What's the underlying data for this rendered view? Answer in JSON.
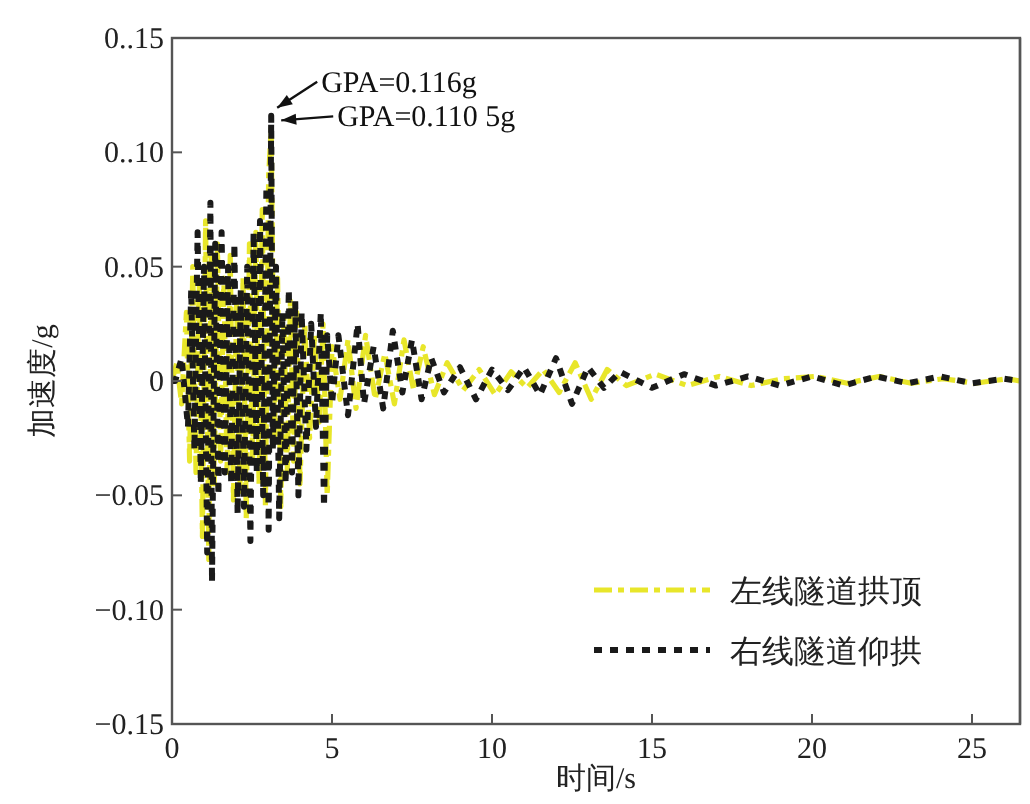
{
  "chart_data": {
    "type": "line",
    "xlabel": "时间/s",
    "ylabel": "加速度/g",
    "xlim": [
      0,
      26.5
    ],
    "xticks": [
      0,
      5,
      10,
      15,
      20,
      25
    ],
    "ylim": [
      -0.15,
      0.15
    ],
    "yticks": [
      {
        "value": -0.15,
        "label": "−0.15"
      },
      {
        "value": -0.1,
        "label": "−0.10"
      },
      {
        "value": -0.05,
        "label": "−0.05"
      },
      0,
      {
        "value": 0.05,
        "label": "0..05"
      },
      {
        "value": 0.1,
        "label": "0..10"
      },
      {
        "value": 0.15,
        "label": "0..15"
      }
    ],
    "grid": false,
    "legend": "bottom right",
    "marker": "none",
    "series": [
      {
        "name": "左线隧道拱顶",
        "color": "#e8e62a",
        "line_style": "dashed",
        "x": [
          0,
          0.15,
          0.3,
          0.45,
          0.55,
          0.65,
          0.75,
          0.85,
          0.95,
          1.05,
          1.15,
          1.22,
          1.32,
          1.42,
          1.52,
          1.62,
          1.72,
          1.82,
          1.92,
          2.02,
          2.12,
          2.22,
          2.32,
          2.42,
          2.52,
          2.62,
          2.72,
          2.82,
          2.92,
          3.02,
          3.1,
          3.2,
          3.3,
          3.4,
          3.5,
          3.6,
          3.7,
          3.8,
          3.9,
          4.0,
          4.15,
          4.3,
          4.45,
          4.6,
          4.72,
          4.85,
          5.0,
          5.25,
          5.5,
          5.75,
          6.05,
          6.35,
          6.65,
          6.95,
          7.25,
          7.55,
          7.85,
          8.2,
          8.6,
          9.1,
          9.6,
          10.1,
          10.6,
          11.1,
          11.6,
          12.1,
          12.6,
          13.1,
          13.6,
          14.2,
          15.1,
          16.1,
          17.1,
          18.1,
          19.1,
          20.1,
          21.1,
          22.1,
          23.1,
          24.1,
          25.1,
          26.1,
          26.5
        ],
        "values": [
          0,
          0.008,
          -0.01,
          0.03,
          -0.035,
          0.05,
          -0.04,
          0.045,
          -0.068,
          0.07,
          -0.078,
          0.055,
          -0.045,
          0.06,
          -0.035,
          0.045,
          -0.04,
          0.055,
          -0.052,
          0.035,
          -0.05,
          0.045,
          -0.06,
          0.06,
          -0.035,
          0.065,
          -0.045,
          0.075,
          -0.055,
          0.09,
          0.1105,
          -0.025,
          0.045,
          -0.055,
          0.028,
          -0.04,
          0.035,
          -0.035,
          0.03,
          -0.045,
          0.025,
          -0.025,
          0.02,
          -0.018,
          0.025,
          -0.05,
          0.015,
          -0.008,
          0.018,
          -0.012,
          0.02,
          -0.008,
          0.012,
          -0.01,
          0.018,
          -0.004,
          0.015,
          -0.006,
          0.008,
          -0.004,
          0.005,
          -0.006,
          0.004,
          -0.003,
          0.005,
          -0.005,
          0.008,
          -0.008,
          0.005,
          -0.002,
          0.003,
          -0.002,
          0.002,
          -0.002,
          0.001,
          0.002,
          -0.001,
          0.002,
          -0.001,
          0.001,
          -0.001,
          0.001,
          0
        ]
      },
      {
        "name": "右线隧道仰拱",
        "color": "#1a1a1a",
        "line_style": "dotted",
        "x": [
          0,
          0.1,
          0.3,
          0.5,
          0.6,
          0.7,
          0.8,
          0.9,
          1.0,
          1.1,
          1.2,
          1.25,
          1.35,
          1.45,
          1.55,
          1.65,
          1.75,
          1.85,
          1.95,
          2.05,
          2.15,
          2.25,
          2.35,
          2.45,
          2.55,
          2.65,
          2.75,
          2.85,
          2.95,
          3.02,
          3.1,
          3.15,
          3.25,
          3.35,
          3.45,
          3.55,
          3.65,
          3.75,
          3.85,
          3.95,
          4.05,
          4.2,
          4.35,
          4.5,
          4.65,
          4.75,
          4.85,
          5.0,
          5.2,
          5.5,
          5.8,
          6.0,
          6.3,
          6.6,
          6.9,
          7.2,
          7.5,
          7.8,
          8.1,
          8.5,
          9.0,
          9.5,
          10,
          10.5,
          11,
          11.5,
          12,
          12.5,
          13,
          13.5,
          14,
          15,
          16,
          17,
          18,
          19,
          20,
          21,
          22,
          23,
          24,
          25,
          26,
          26.5
        ],
        "values": [
          0,
          0,
          0.01,
          -0.02,
          0.04,
          -0.03,
          0.065,
          -0.045,
          0.05,
          -0.075,
          0.078,
          -0.088,
          0.06,
          -0.05,
          0.065,
          -0.04,
          0.05,
          -0.045,
          0.06,
          -0.058,
          0.04,
          -0.055,
          0.05,
          -0.07,
          0.065,
          -0.04,
          0.07,
          -0.05,
          0.085,
          -0.065,
          0.116,
          -0.03,
          0.05,
          -0.06,
          0.03,
          -0.045,
          0.04,
          -0.04,
          0.035,
          -0.05,
          0.03,
          -0.03,
          0.025,
          -0.02,
          0.03,
          -0.055,
          0.02,
          -0.01,
          0.02,
          -0.015,
          0.025,
          -0.01,
          0.015,
          -0.012,
          0.022,
          -0.005,
          0.018,
          -0.008,
          0.01,
          -0.005,
          0.006,
          -0.008,
          0.005,
          -0.004,
          0.006,
          -0.006,
          0.01,
          -0.01,
          0.006,
          -0.003,
          0.004,
          -0.003,
          0.003,
          -0.002,
          0.002,
          -0.002,
          0.002,
          -0.002,
          0.002,
          -0.001,
          0.002,
          -0.001,
          0.001,
          0
        ]
      }
    ],
    "annotations": [
      {
        "text": "GPA=0.116g",
        "x": 3.1,
        "y": 0.116
      },
      {
        "text": "GPA=0.110 5g",
        "x": 3.1,
        "y": 0.1105
      }
    ]
  }
}
